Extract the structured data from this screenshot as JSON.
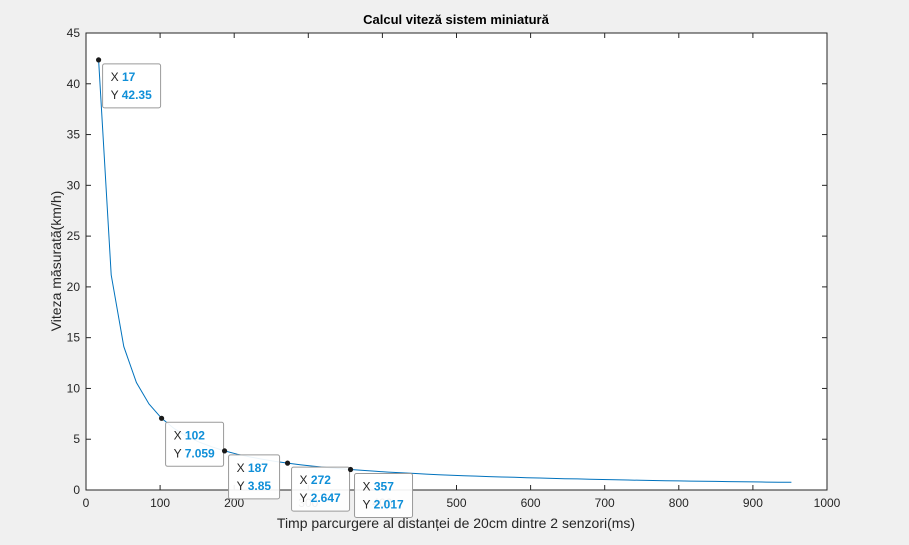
{
  "chart_data": {
    "type": "line",
    "title": "Calcul viteză sistem miniatură",
    "xlabel": "Timp parcurgere al distanței de 20cm dintre 2 senzori(ms)",
    "ylabel": "Viteza măsurată(km/h)",
    "xlim": [
      0,
      1000
    ],
    "ylim": [
      0,
      45
    ],
    "xticks": [
      0,
      100,
      200,
      300,
      400,
      500,
      600,
      700,
      800,
      900,
      1000
    ],
    "yticks": [
      0,
      5,
      10,
      15,
      20,
      25,
      30,
      35,
      40,
      45
    ],
    "grid": false,
    "line_color": "#0072bd",
    "series": [
      {
        "x": [
          17,
          34,
          51,
          68,
          85,
          102,
          119,
          136,
          153,
          170,
          187,
          204,
          221,
          238,
          255,
          272,
          289,
          306,
          323,
          340,
          357,
          374,
          391,
          408,
          425,
          442,
          459,
          476,
          493,
          510,
          527,
          544,
          561,
          578,
          595,
          612,
          629,
          646,
          663,
          680,
          697,
          714,
          731,
          748,
          765,
          782,
          799,
          816,
          833,
          850,
          867,
          884,
          901,
          918,
          935,
          952
        ],
        "y": [
          42.35,
          21.18,
          14.12,
          10.59,
          8.47,
          7.059,
          6.05,
          5.29,
          4.71,
          4.24,
          3.85,
          3.53,
          3.26,
          3.03,
          2.82,
          2.647,
          2.49,
          2.35,
          2.23,
          2.12,
          2.017,
          1.93,
          1.84,
          1.76,
          1.69,
          1.63,
          1.57,
          1.51,
          1.46,
          1.41,
          1.37,
          1.32,
          1.28,
          1.25,
          1.21,
          1.18,
          1.14,
          1.11,
          1.09,
          1.06,
          1.03,
          1.01,
          0.98,
          0.96,
          0.94,
          0.92,
          0.9,
          0.88,
          0.86,
          0.85,
          0.83,
          0.81,
          0.8,
          0.78,
          0.77,
          0.76
        ]
      }
    ],
    "datatips": [
      {
        "x": "17",
        "y": "42.35"
      },
      {
        "x": "102",
        "y": "7.059"
      },
      {
        "x": "187",
        "y": "3.85"
      },
      {
        "x": "272",
        "y": "2.647"
      },
      {
        "x": "357",
        "y": "2.017"
      }
    ],
    "datatip_prefix_x": "X",
    "datatip_prefix_y": "Y",
    "datatip_value_color": "#0f8fd8"
  }
}
